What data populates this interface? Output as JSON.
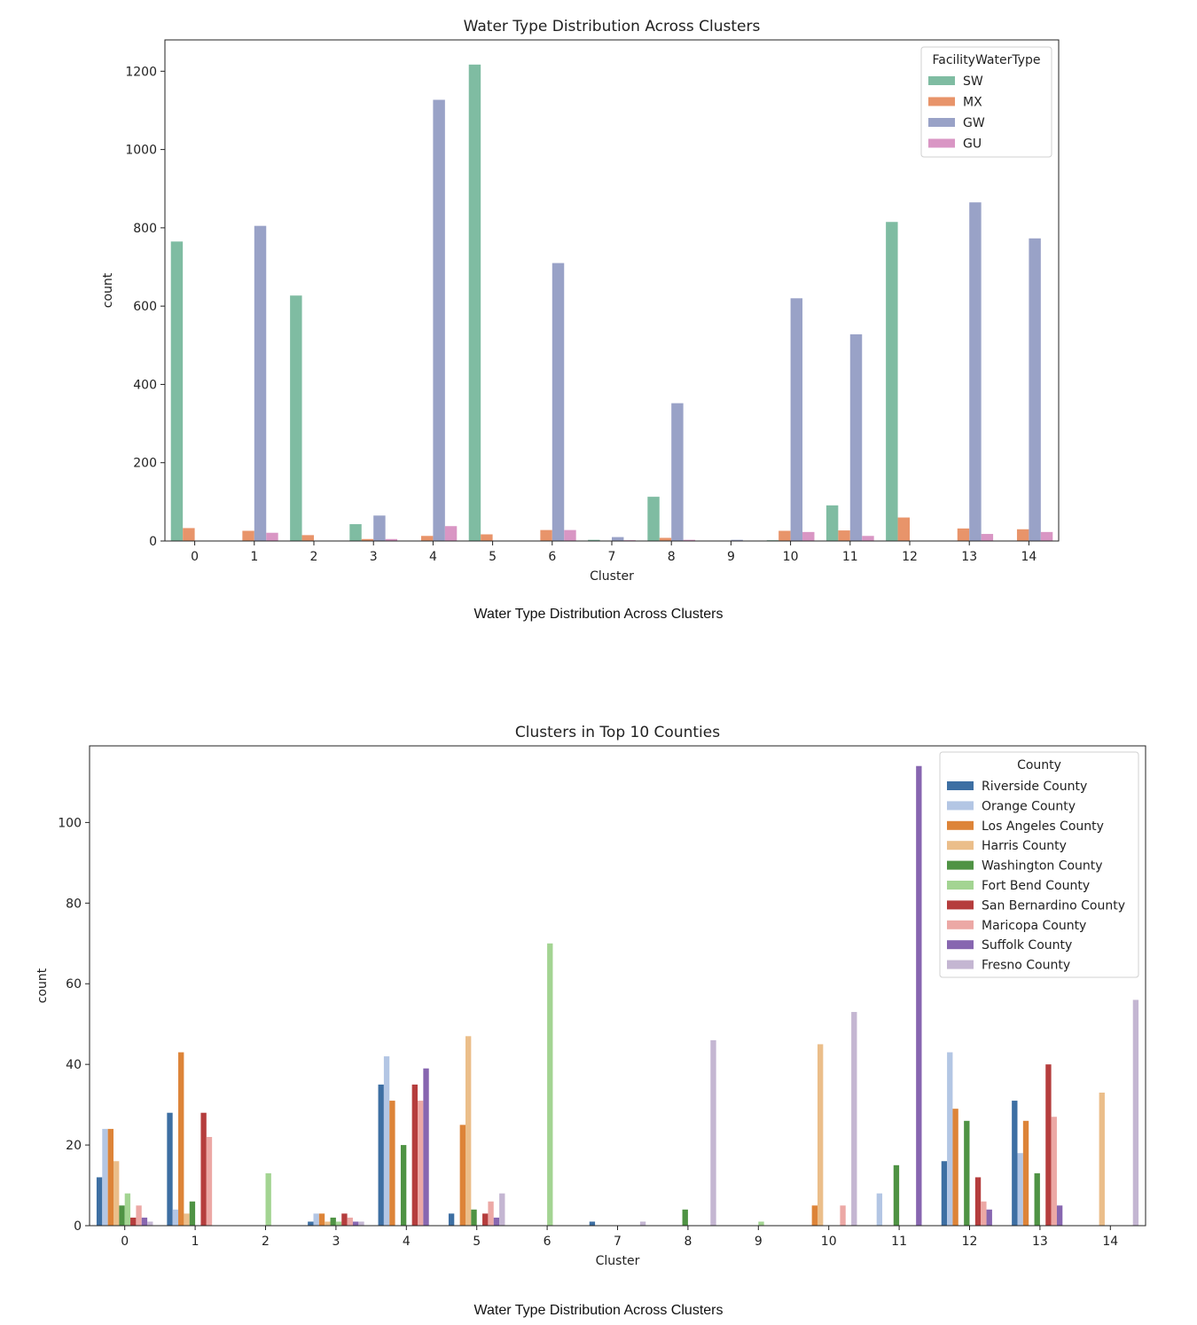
{
  "chart_data": [
    {
      "type": "bar",
      "title": "Water Type Distribution Across Clusters",
      "xlabel": "Cluster",
      "ylabel": "count",
      "ylim": [
        0,
        1280
      ],
      "yticks": [
        0,
        200,
        400,
        600,
        800,
        1000,
        1200
      ],
      "categories": [
        "0",
        "1",
        "2",
        "3",
        "4",
        "5",
        "6",
        "7",
        "8",
        "9",
        "10",
        "11",
        "12",
        "13",
        "14"
      ],
      "legend_title": "FacilityWaterType",
      "legend_position": "top-right",
      "grid": false,
      "series": [
        {
          "name": "SW",
          "color": "#7fbca2",
          "values": [
            765,
            0,
            627,
            43,
            0,
            1217,
            0,
            3,
            113,
            0,
            2,
            91,
            815,
            0,
            0
          ]
        },
        {
          "name": "MX",
          "color": "#e8946a",
          "values": [
            33,
            26,
            15,
            5,
            13,
            17,
            28,
            0,
            8,
            0,
            26,
            27,
            60,
            32,
            30
          ]
        },
        {
          "name": "GW",
          "color": "#99a2c7",
          "values": [
            0,
            805,
            0,
            65,
            1127,
            0,
            710,
            10,
            352,
            3,
            620,
            528,
            0,
            865,
            773
          ]
        },
        {
          "name": "GU",
          "color": "#d996c4",
          "values": [
            0,
            21,
            0,
            5,
            38,
            0,
            28,
            2,
            3,
            0,
            23,
            13,
            0,
            18,
            23
          ]
        }
      ]
    },
    {
      "type": "bar",
      "title": "Clusters in Top 10 Counties",
      "xlabel": "Cluster",
      "ylabel": "count",
      "ylim": [
        0,
        119
      ],
      "yticks": [
        0,
        20,
        40,
        60,
        80,
        100
      ],
      "categories": [
        "0",
        "1",
        "2",
        "3",
        "4",
        "5",
        "6",
        "7",
        "8",
        "9",
        "10",
        "11",
        "12",
        "13",
        "14"
      ],
      "legend_title": "County",
      "legend_position": "top-right",
      "grid": false,
      "series": [
        {
          "name": "Riverside County",
          "color": "#3d6fa3",
          "values": [
            12,
            28,
            0,
            1,
            35,
            3,
            0,
            1,
            0,
            0,
            0,
            0,
            16,
            31,
            0
          ]
        },
        {
          "name": "Orange County",
          "color": "#b3c6e4",
          "values": [
            24,
            4,
            0,
            3,
            42,
            0,
            0,
            0,
            0,
            0,
            0,
            8,
            43,
            18,
            0
          ]
        },
        {
          "name": "Los Angeles County",
          "color": "#dd8438",
          "values": [
            24,
            43,
            0,
            3,
            31,
            25,
            0,
            0,
            0,
            0,
            5,
            0,
            29,
            26,
            0
          ]
        },
        {
          "name": "Harris County",
          "color": "#ebbe8a",
          "values": [
            16,
            3,
            0,
            1,
            0,
            47,
            0,
            0,
            0,
            0,
            45,
            0,
            0,
            0,
            33
          ]
        },
        {
          "name": "Washington County",
          "color": "#4f9344",
          "values": [
            5,
            6,
            0,
            2,
            20,
            4,
            0,
            0,
            4,
            0,
            0,
            15,
            26,
            13,
            0
          ]
        },
        {
          "name": "Fort Bend County",
          "color": "#a3d492",
          "values": [
            8,
            0,
            13,
            1,
            0,
            0,
            70,
            0,
            0,
            1,
            0,
            0,
            0,
            0,
            0
          ]
        },
        {
          "name": "San Bernardino County",
          "color": "#b53d3d",
          "values": [
            2,
            28,
            0,
            3,
            35,
            3,
            0,
            0,
            0,
            0,
            0,
            0,
            12,
            40,
            0
          ]
        },
        {
          "name": "Maricopa County",
          "color": "#eca8a5",
          "values": [
            5,
            22,
            0,
            2,
            31,
            6,
            0,
            0,
            0,
            0,
            5,
            0,
            6,
            27,
            0
          ]
        },
        {
          "name": "Suffolk County",
          "color": "#8766b0",
          "values": [
            2,
            0,
            0,
            1,
            39,
            2,
            0,
            0,
            0,
            0,
            0,
            114,
            4,
            5,
            0
          ]
        },
        {
          "name": "Fresno County",
          "color": "#c4b6d2",
          "values": [
            1,
            0,
            0,
            1,
            0,
            8,
            0,
            1,
            46,
            0,
            53,
            0,
            0,
            0,
            56
          ]
        }
      ]
    }
  ],
  "captions": {
    "first": "Water Type Distribution Across Clusters",
    "second": "Water Type Distribution Across Clusters"
  }
}
